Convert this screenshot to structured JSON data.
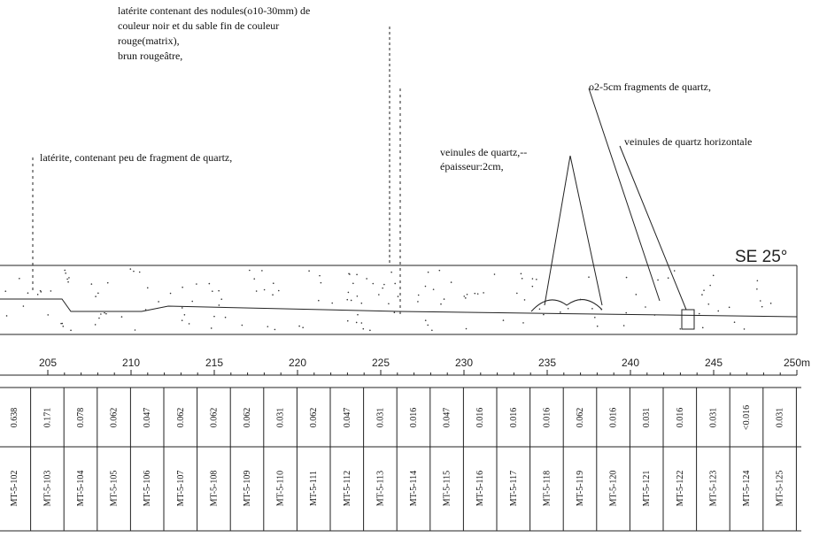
{
  "annotations": {
    "top": [
      "latérite contenant des nodules(ο10-30mm) de",
      "couleur noir et du sable fin de couleur",
      "rouge(matrix),",
      "brun rougeâtre,"
    ],
    "left": "latérite, contenant peu de fragment de quartz,",
    "veinules": [
      "veinules de quartz,--",
      "épaisseur:2cm,"
    ],
    "fragments": "ο2-5cm fragments de quartz,",
    "horizontal": "veinules de quartz horizontale"
  },
  "direction": "SE 25°",
  "scale": [
    "205",
    "210",
    "215",
    "220",
    "225",
    "230",
    "235",
    "240",
    "245",
    "250m"
  ],
  "table": {
    "values": [
      "0.638",
      "0.171",
      "0.078",
      "0.062",
      "0.047",
      "0.062",
      "0.062",
      "0.062",
      "0.031",
      "0.062",
      "0.047",
      "0.031",
      "0.016",
      "0.047",
      "0.016",
      "0.016",
      "0.016",
      "0.062",
      "0.016",
      "0.031",
      "0.016",
      "0.031",
      "<0.016",
      "0.031"
    ],
    "samples": [
      "MT-5-102",
      "MT-5-103",
      "MT-5-104",
      "MT-5-105",
      "MT-5-106",
      "MT-5-107",
      "MT-5-108",
      "MT-5-109",
      "MT-5-110",
      "MT-5-111",
      "MT-5-112",
      "MT-5-113",
      "MT-5-114",
      "MT-5-115",
      "MT-5-116",
      "MT-5-117",
      "MT-5-118",
      "MT-5-119",
      "MT-5-120",
      "MT-5-121",
      "MT-5-122",
      "MT-5-123",
      "MT-5-124",
      "MT-5-125"
    ]
  }
}
